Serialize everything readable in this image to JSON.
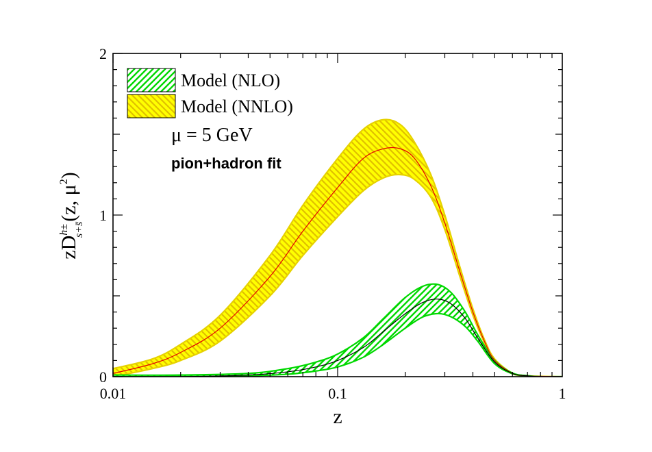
{
  "chart_data": {
    "type": "line",
    "xscale": "log",
    "xlim": [
      0.01,
      1
    ],
    "ylim": [
      0,
      2
    ],
    "xlabel": "z",
    "ylabel": {
      "base": "zD",
      "superscript": "h±",
      "subscript": "s+s̄",
      "args": "(z, μ",
      "args_sup": "2",
      "args_end": ")"
    },
    "x_ticks": [
      {
        "value": 0.01,
        "label": "0.01"
      },
      {
        "value": 0.1,
        "label": "0.1"
      },
      {
        "value": 1,
        "label": "1"
      }
    ],
    "y_ticks": [
      {
        "value": 0,
        "label": "0"
      },
      {
        "value": 1,
        "label": "1"
      },
      {
        "value": 2,
        "label": "2"
      }
    ],
    "legend_position": "top-left",
    "series": [
      {
        "name": "Model (NNLO)",
        "fill_color": "#ffff00",
        "hatch_color": "#e6c400",
        "hatch_direction": "backslash",
        "line_color": "#e60000",
        "x": [
          0.01,
          0.015,
          0.02,
          0.03,
          0.05,
          0.07,
          0.1,
          0.13,
          0.16,
          0.19,
          0.22,
          0.26,
          0.3,
          0.35,
          0.4,
          0.45,
          0.5,
          0.6,
          0.7,
          0.8,
          1.0
        ],
        "central": [
          0.02,
          0.08,
          0.15,
          0.3,
          0.62,
          0.9,
          1.17,
          1.35,
          1.41,
          1.41,
          1.35,
          1.18,
          0.95,
          0.65,
          0.4,
          0.22,
          0.1,
          0.02,
          0.005,
          0.002,
          0.0
        ],
        "upper": [
          0.05,
          0.11,
          0.2,
          0.38,
          0.75,
          1.06,
          1.35,
          1.53,
          1.59,
          1.56,
          1.45,
          1.25,
          1.0,
          0.68,
          0.42,
          0.23,
          0.11,
          0.022,
          0.006,
          0.002,
          0.0
        ],
        "lower": [
          0.0,
          0.05,
          0.1,
          0.22,
          0.5,
          0.75,
          0.99,
          1.15,
          1.23,
          1.25,
          1.22,
          1.11,
          0.91,
          0.62,
          0.38,
          0.21,
          0.09,
          0.018,
          0.004,
          0.001,
          0.0
        ]
      },
      {
        "name": "Model (NLO)",
        "fill_color": "#00e600",
        "hatch_color": "#00cc00",
        "hatch_direction": "slash",
        "line_color": "#000000",
        "x": [
          0.01,
          0.02,
          0.04,
          0.06,
          0.08,
          0.1,
          0.13,
          0.16,
          0.2,
          0.24,
          0.28,
          0.32,
          0.37,
          0.42,
          0.5,
          0.6,
          0.7,
          0.8,
          1.0
        ],
        "central": [
          0.0,
          0.0,
          0.01,
          0.03,
          0.06,
          0.1,
          0.18,
          0.28,
          0.39,
          0.46,
          0.48,
          0.45,
          0.36,
          0.24,
          0.09,
          0.02,
          0.005,
          0.0,
          0.0
        ],
        "upper": [
          0.01,
          0.01,
          0.02,
          0.05,
          0.09,
          0.14,
          0.24,
          0.36,
          0.49,
          0.56,
          0.57,
          0.52,
          0.4,
          0.26,
          0.1,
          0.022,
          0.006,
          0.0,
          0.0
        ],
        "lower": [
          0.0,
          0.0,
          0.005,
          0.015,
          0.035,
          0.06,
          0.12,
          0.2,
          0.3,
          0.37,
          0.39,
          0.37,
          0.31,
          0.22,
          0.08,
          0.018,
          0.004,
          0.0,
          0.0
        ]
      }
    ],
    "annotations": [
      {
        "text": "μ = 5 GeV",
        "style": "serif"
      },
      {
        "text": "pion+hadron fit",
        "style": "bold-sans"
      }
    ]
  }
}
